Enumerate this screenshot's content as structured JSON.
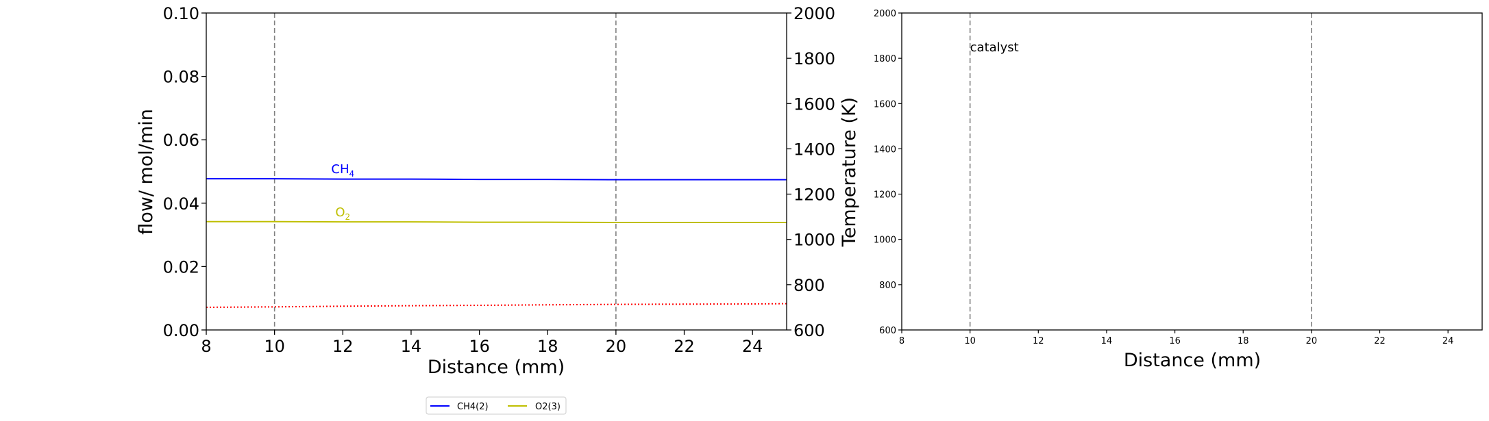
{
  "chart_data": [
    {
      "type": "line",
      "xlabel": "Distance (mm)",
      "ylabel": "flow/ mol/min",
      "y2label": "Temperature (K)",
      "xlim": [
        8,
        25
      ],
      "ylim": [
        0,
        0.1
      ],
      "y2lim": [
        600,
        2000
      ],
      "xticks": [
        "8",
        "10",
        "12",
        "14",
        "16",
        "18",
        "20",
        "22",
        "24"
      ],
      "yticks": [
        "0.00",
        "0.02",
        "0.04",
        "0.06",
        "0.08",
        "0.10"
      ],
      "y2ticks": [
        "600",
        "800",
        "1000",
        "1200",
        "1400",
        "1600",
        "1800",
        "2000"
      ],
      "vlines": [
        10,
        20
      ],
      "series": [
        {
          "name": "CH4(2)",
          "label_base": "CH",
          "label_sub": "4",
          "label_at": [
            12.0,
            0.0495
          ],
          "color": "#0000ff",
          "style": "solid",
          "axis": "left",
          "x": [
            8,
            10,
            12,
            14,
            16,
            18,
            20,
            22,
            24,
            25
          ],
          "y": [
            0.0477,
            0.0477,
            0.0476,
            0.0476,
            0.0475,
            0.0475,
            0.0474,
            0.0474,
            0.0474,
            0.0474
          ]
        },
        {
          "name": "O2(3)",
          "label_base": "O",
          "label_sub": "2",
          "label_at": [
            12.0,
            0.0358
          ],
          "color": "#bfbf00",
          "style": "solid",
          "axis": "left",
          "x": [
            8,
            10,
            12,
            14,
            16,
            18,
            20,
            22,
            24,
            25
          ],
          "y": [
            0.0342,
            0.0342,
            0.0341,
            0.0341,
            0.034,
            0.034,
            0.0339,
            0.0339,
            0.0339,
            0.0339
          ]
        },
        {
          "name": "Temperature",
          "color": "#ff0000",
          "style": "dotted",
          "axis": "right",
          "x": [
            8,
            10,
            12,
            14,
            16,
            18,
            20,
            22,
            24,
            25
          ],
          "y": [
            700,
            702,
            705,
            707,
            709,
            711,
            713,
            714,
            715,
            716
          ]
        }
      ],
      "legend": {
        "placement": "below",
        "entries": [
          "CH4(2)",
          "O2(3)"
        ]
      }
    },
    {
      "type": "line",
      "xlabel": "Distance (mm)",
      "xlim": [
        8,
        25
      ],
      "ylim": [
        600,
        2000
      ],
      "xticks": [
        "8",
        "10",
        "12",
        "14",
        "16",
        "18",
        "20",
        "22",
        "24"
      ],
      "yticks": [
        "600",
        "800",
        "1000",
        "1200",
        "1400",
        "1600",
        "1800",
        "2000"
      ],
      "vlines": [
        10,
        20
      ],
      "annotation": {
        "text": "catalyst",
        "x": 10,
        "y": 1830
      },
      "series": []
    }
  ],
  "colors": {
    "axis": "#000000",
    "vline": "#808080"
  }
}
